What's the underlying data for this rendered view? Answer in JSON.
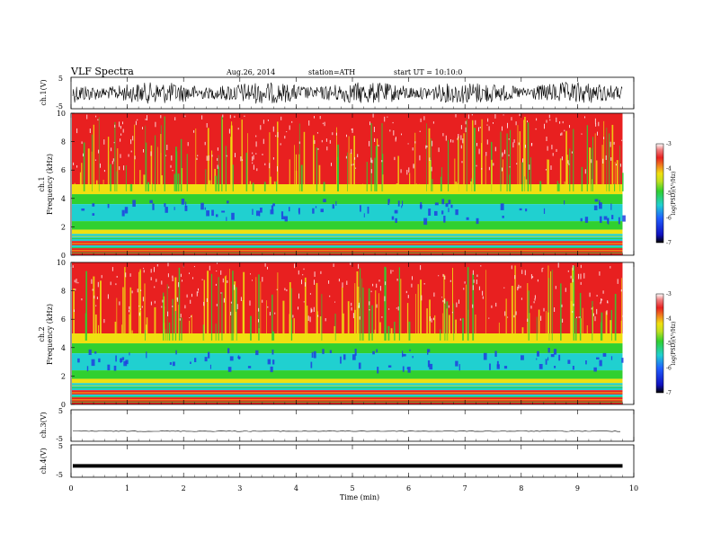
{
  "header": {
    "title": "VLF  Spectra",
    "date": "Aug.26, 2014",
    "station": "station=ATH",
    "start": "start  UT =   10:10:0"
  },
  "chart_data": [
    {
      "type": "line",
      "ylabel": "ch.1(V)",
      "ylim": [
        -5,
        5
      ],
      "yticks": [
        "5",
        "-5"
      ],
      "description": "noisy waveform, amplitude roughly ±2.5 V"
    },
    {
      "type": "heatmap",
      "ylabel_top": "ch.1",
      "ylabel": "Frequency  (kHz)",
      "ylim": [
        0,
        10
      ],
      "yticks": [
        "0",
        "2",
        "4",
        "6",
        "8",
        "10"
      ],
      "colorbar": {
        "label": "log(PSD)(V²/Hz)",
        "ticks": [
          "-3",
          "-4",
          "-5",
          "-6",
          "-7"
        ],
        "range": [
          -7,
          -3
        ]
      }
    },
    {
      "type": "heatmap",
      "ylabel_top": "ch.2",
      "ylabel": "Frequency  (kHz)",
      "ylim": [
        0,
        10
      ],
      "yticks": [
        "0",
        "2",
        "4",
        "6",
        "8",
        "10"
      ],
      "colorbar": {
        "label": "log(PSD)(V²/Hz)",
        "ticks": [
          "-3",
          "-4",
          "-5",
          "-6",
          "-7"
        ],
        "range": [
          -7,
          -3
        ]
      }
    },
    {
      "type": "line",
      "ylabel": "ch.3(V)",
      "ylim": [
        -5,
        5
      ],
      "yticks": [
        "5",
        "-5"
      ],
      "level": -1.8
    },
    {
      "type": "line",
      "ylabel": "ch.4(V)",
      "ylim": [
        -5,
        5
      ],
      "yticks": [
        "5",
        "-5"
      ],
      "level": -1.5
    }
  ],
  "xaxis": {
    "label": "Time  (min)",
    "xlim": [
      0,
      10
    ],
    "ticks": [
      "0",
      "1",
      "2",
      "3",
      "4",
      "5",
      "6",
      "7",
      "8",
      "9",
      "10"
    ],
    "data_end": 9.8
  },
  "colors": {
    "red": "#e82020",
    "yellow": "#f0e010",
    "green": "#30d030",
    "cyan": "#20d0d0",
    "blue": "#2040e0",
    "white": "#ffffff"
  }
}
